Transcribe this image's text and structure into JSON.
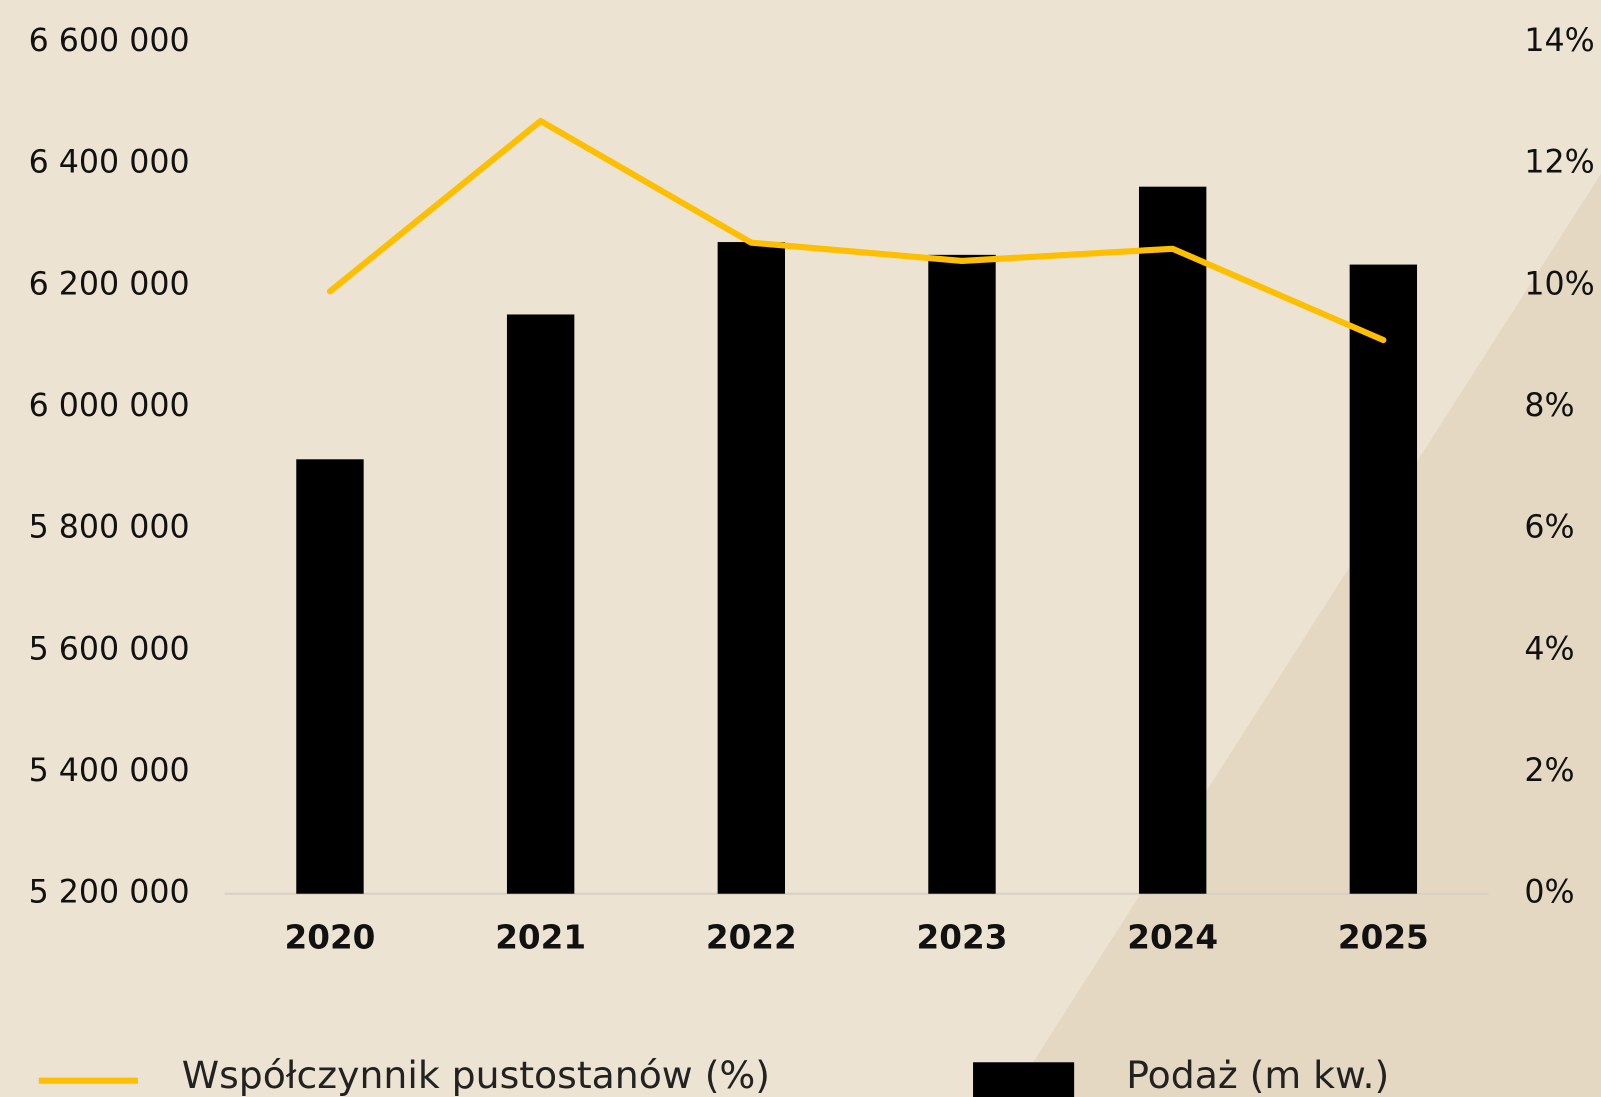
{
  "chart_data": {
    "type": "bar+line",
    "categories": [
      "2020",
      "2021",
      "2022",
      "2023",
      "2024",
      "2025"
    ],
    "series": [
      {
        "name": "Podaż (m kw.)",
        "type": "bar",
        "color": "#000000",
        "values": [
          5914000,
          6152000,
          6271000,
          6250000,
          6362000,
          6234000
        ]
      },
      {
        "name": "Współczynnik pustostanów (%)",
        "type": "line",
        "axis": "y2",
        "color": "#fdbf00",
        "values": [
          9.9,
          12.7,
          10.7,
          10.4,
          10.6,
          9.1
        ]
      }
    ],
    "ylim": [
      5200000,
      6600000
    ],
    "yticks": [
      {
        "value": 5200000,
        "label": "5 200 000"
      },
      {
        "value": 5400000,
        "label": "5 400 000"
      },
      {
        "value": 5600000,
        "label": "5 600 000"
      },
      {
        "value": 5800000,
        "label": "5 800 000"
      },
      {
        "value": 6000000,
        "label": "6 000 000"
      },
      {
        "value": 6200000,
        "label": "6 200 000"
      },
      {
        "value": 6400000,
        "label": "6 400 000"
      },
      {
        "value": 6600000,
        "label": "6 600 000"
      }
    ],
    "y2lim": [
      0,
      14
    ],
    "y2ticks": [
      {
        "value": 0,
        "label": "0%"
      },
      {
        "value": 2,
        "label": "2%"
      },
      {
        "value": 4,
        "label": "4%"
      },
      {
        "value": 6,
        "label": "6%"
      },
      {
        "value": 8,
        "label": "8%"
      },
      {
        "value": 10,
        "label": "10%"
      },
      {
        "value": 12,
        "label": "12%"
      },
      {
        "value": 14,
        "label": "14%"
      }
    ],
    "grid": false,
    "legend": "bottom"
  }
}
